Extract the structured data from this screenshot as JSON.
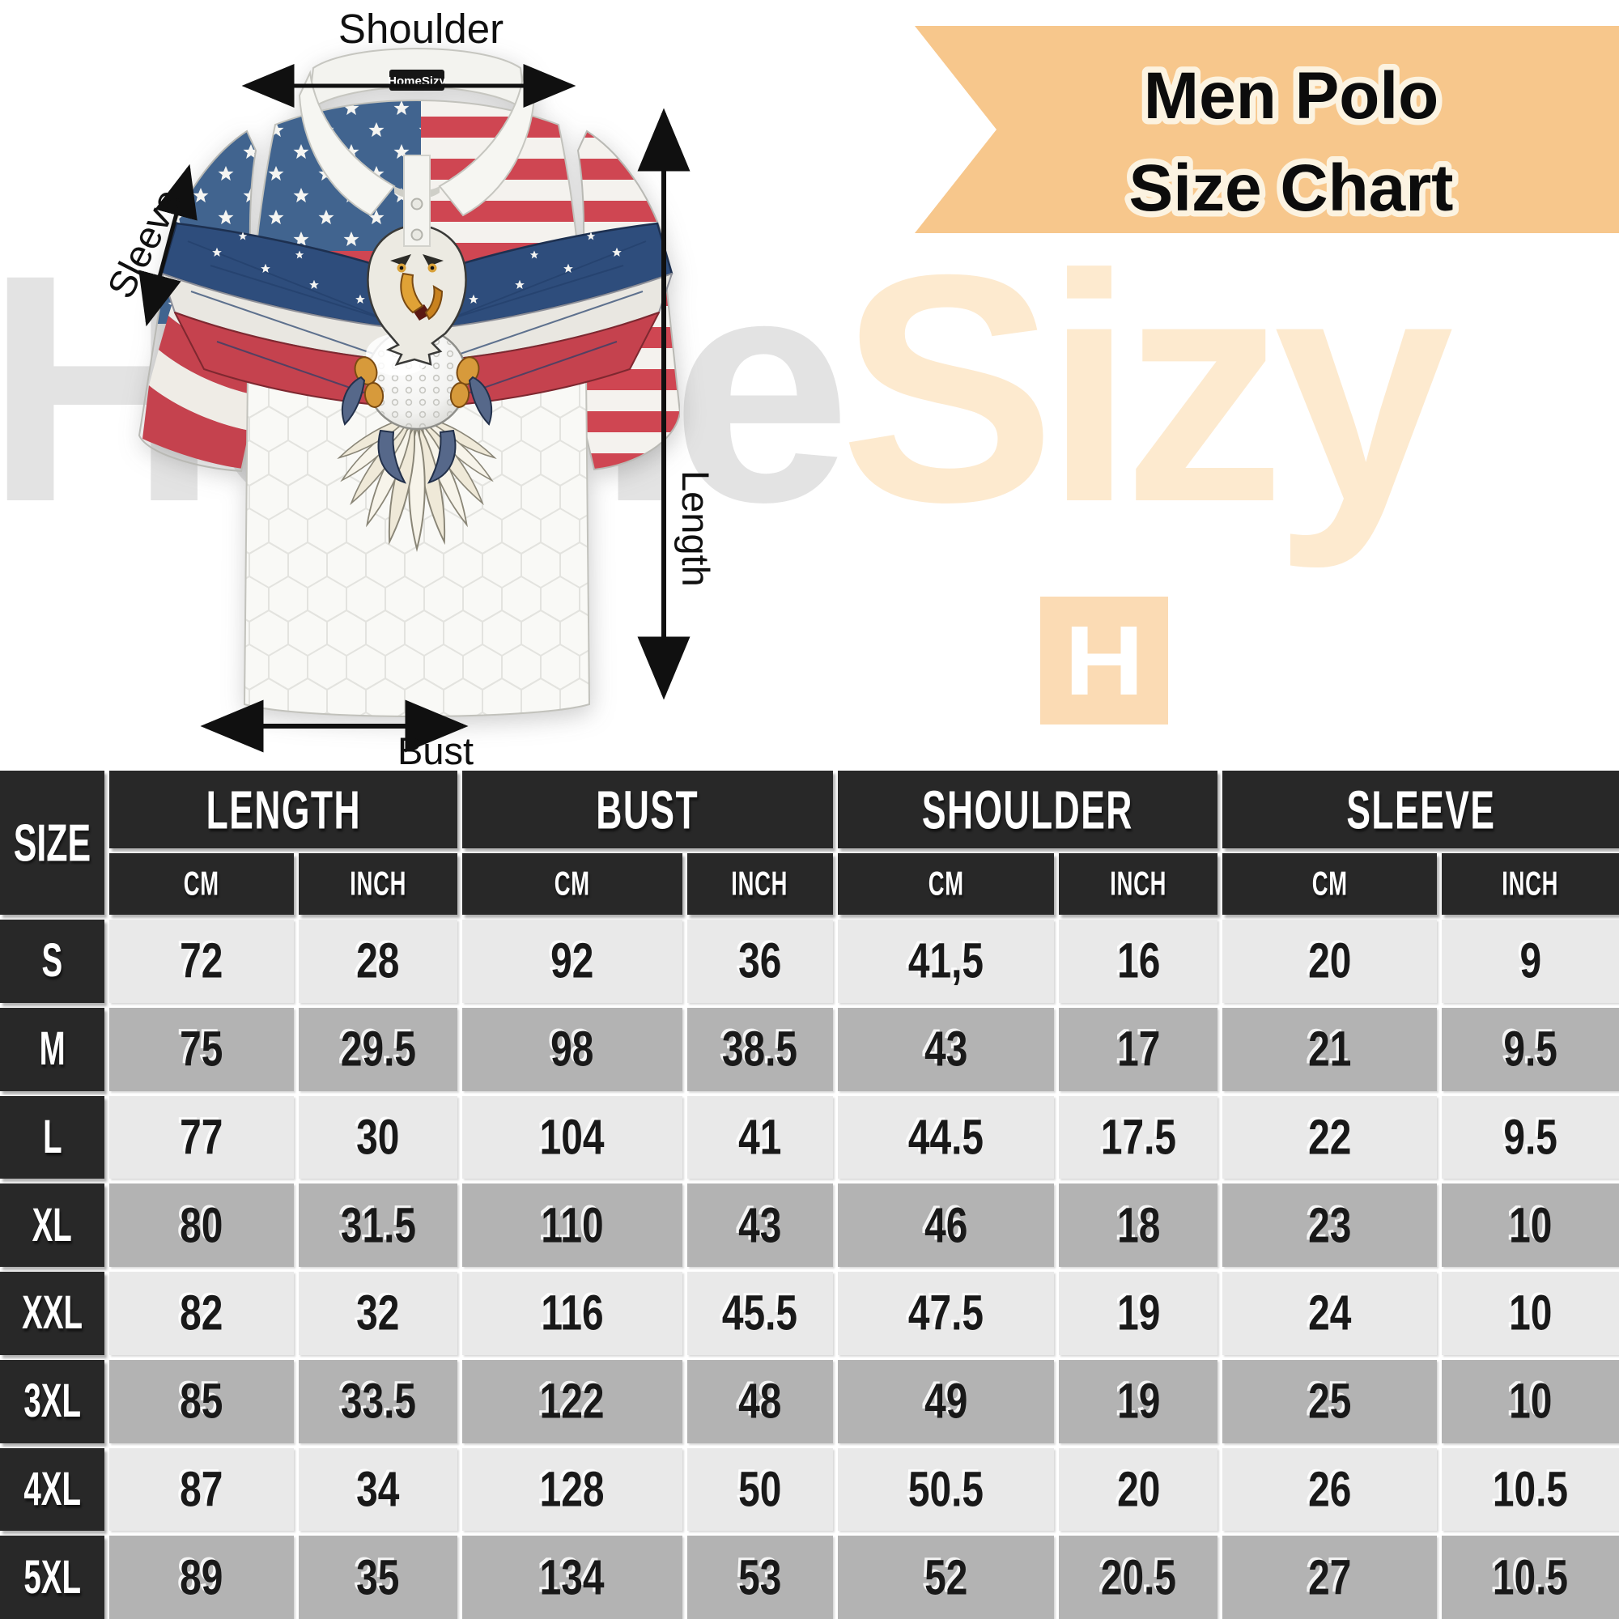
{
  "title": {
    "line1": "Men Polo",
    "line2": "Size Chart"
  },
  "brand": {
    "watermark_gray": "Home",
    "watermark_peach": "Sizy",
    "logo_letter": "H",
    "collar_tag": "HomeSizy"
  },
  "diagram": {
    "shoulder_label": "Shoulder",
    "sleeve_label": "Sleeve",
    "length_label": "Length",
    "bust_label": "Bust"
  },
  "colors": {
    "banner_bg": "#f7c78c",
    "title_outline": "#fcf3e1",
    "watermark_gray": "#e3e3e3",
    "watermark_peach": "#fdeacf",
    "logo_bg": "#fbdbb4",
    "flag_blue": "#41648f",
    "flag_red": "#cf4652",
    "header_bg": "#282828",
    "row_light": "#e9e9e9",
    "row_dark": "#b3b3b3"
  },
  "table": {
    "size_header": "SIZE",
    "groups": [
      "LENGTH",
      "BUST",
      "SHOULDER",
      "SLEEVE"
    ],
    "unit_headers": [
      "CM",
      "INCH",
      "CM",
      "INCH",
      "CM",
      "INCH",
      "CM",
      "INCH"
    ],
    "rows": [
      {
        "size": "S",
        "values": [
          "72",
          "28",
          "92",
          "36",
          "41,5",
          "16",
          "20",
          "9"
        ]
      },
      {
        "size": "M",
        "values": [
          "75",
          "29.5",
          "98",
          "38.5",
          "43",
          "17",
          "21",
          "9.5"
        ]
      },
      {
        "size": "L",
        "values": [
          "77",
          "30",
          "104",
          "41",
          "44.5",
          "17.5",
          "22",
          "9.5"
        ]
      },
      {
        "size": "XL",
        "values": [
          "80",
          "31.5",
          "110",
          "43",
          "46",
          "18",
          "23",
          "10"
        ]
      },
      {
        "size": "XXL",
        "values": [
          "82",
          "32",
          "116",
          "45.5",
          "47.5",
          "19",
          "24",
          "10"
        ]
      },
      {
        "size": "3XL",
        "values": [
          "85",
          "33.5",
          "122",
          "48",
          "49",
          "19",
          "25",
          "10"
        ]
      },
      {
        "size": "4XL",
        "values": [
          "87",
          "34",
          "128",
          "50",
          "50.5",
          "20",
          "26",
          "10.5"
        ]
      },
      {
        "size": "5XL",
        "values": [
          "89",
          "35",
          "134",
          "53",
          "52",
          "20.5",
          "27",
          "10.5"
        ]
      }
    ]
  }
}
